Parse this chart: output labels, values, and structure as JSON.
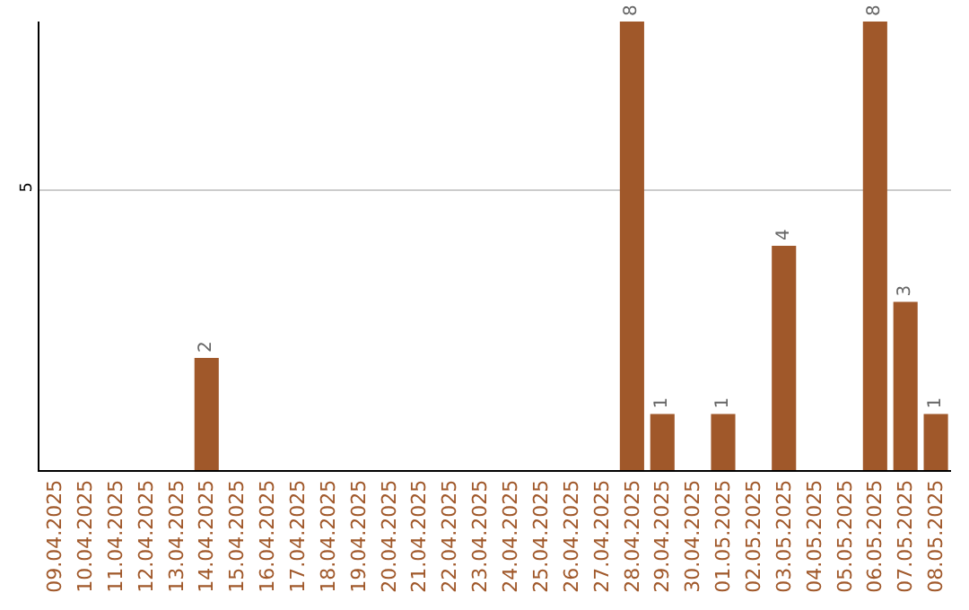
{
  "chart_data": {
    "type": "bar",
    "categories": [
      "09.04.2025",
      "10.04.2025",
      "11.04.2025",
      "12.04.2025",
      "13.04.2025",
      "14.04.2025",
      "15.04.2025",
      "16.04.2025",
      "17.04.2025",
      "18.04.2025",
      "19.04.2025",
      "20.04.2025",
      "21.04.2025",
      "22.04.2025",
      "23.04.2025",
      "24.04.2025",
      "25.04.2025",
      "26.04.2025",
      "27.04.2025",
      "28.04.2025",
      "29.04.2025",
      "30.04.2025",
      "01.05.2025",
      "02.05.2025",
      "03.05.2025",
      "04.05.2025",
      "05.05.2025",
      "06.05.2025",
      "07.05.2025",
      "08.05.2025"
    ],
    "values": [
      null,
      null,
      null,
      null,
      null,
      2,
      null,
      null,
      null,
      null,
      null,
      null,
      null,
      null,
      null,
      null,
      null,
      null,
      null,
      8,
      1,
      null,
      1,
      null,
      4,
      null,
      null,
      8,
      3,
      1
    ],
    "color": "#a0582a",
    "ylim": [
      0,
      8
    ],
    "yticks": [
      5
    ],
    "grid": "y",
    "data_labels": true
  }
}
